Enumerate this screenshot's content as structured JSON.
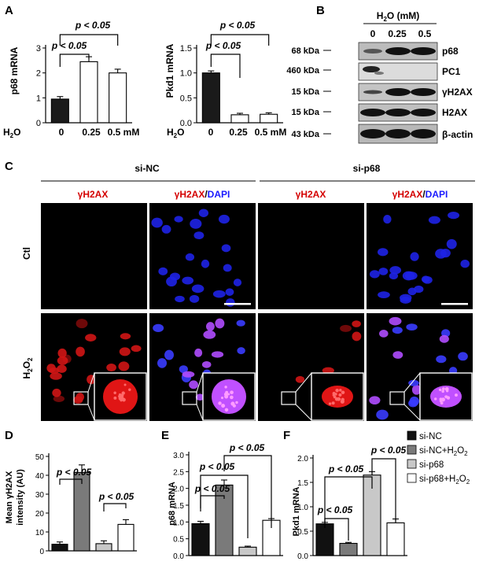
{
  "panels": {
    "A": "A",
    "B": "B",
    "C": "C",
    "D": "D",
    "E": "E",
    "F": "F"
  },
  "figA_left": {
    "ylabel": "p68 mRNA",
    "treatment_label": "H",
    "treatment_sub": "2",
    "treatment_label_end": "O",
    "unit": "mM",
    "categories": [
      "0",
      "0.25",
      "0.5 mM"
    ],
    "sig_top": "p < 0.05",
    "sig_low": "p < 0.05",
    "yticks": [
      "0",
      "1",
      "2",
      "3"
    ]
  },
  "figA_right": {
    "ylabel": "Pkd1 mRNA",
    "treatment_label": "H",
    "treatment_sub": "2",
    "treatment_label_end": "O",
    "categories": [
      "0",
      "0.25",
      "0.5 mM"
    ],
    "sig_top": "p < 0.05",
    "sig_low": "p < 0.05",
    "yticks": [
      "0.0",
      "0.5",
      "1.0",
      "1.5"
    ]
  },
  "figB": {
    "header": "H",
    "header_sub": "2",
    "header_end": "O",
    "header_unit": " (mM)",
    "lanes": [
      "0",
      "0.25",
      "0.5"
    ],
    "rows": [
      {
        "kda": "68 kDa",
        "protein": "p68"
      },
      {
        "kda": "460 kDa",
        "protein": "PC1"
      },
      {
        "kda": "15 kDa",
        "protein": "γH2AX"
      },
      {
        "kda": "15 kDa",
        "protein": "H2AX"
      },
      {
        "kda": "43 kDa",
        "protein": "β-actin"
      }
    ]
  },
  "figC": {
    "group1": "si-NC",
    "group2": "si-p68",
    "col_red": "γH2AX",
    "col_merge_red": "γH2AX",
    "col_merge_sep": "/",
    "col_merge_blue": "DAPI",
    "row1": "Ctl",
    "row2_main": "H",
    "row2_sub": "2",
    "row2_end": "O",
    "row2_sub2": "2"
  },
  "chart_data": [
    {
      "type": "bar",
      "panel": "A-left",
      "title": "",
      "ylabel": "p68 mRNA",
      "categories": [
        "0",
        "0.25",
        "0.5"
      ],
      "values": [
        0.95,
        2.45,
        2.0
      ],
      "errors": [
        0.1,
        0.2,
        0.15
      ],
      "ylim": [
        0,
        3
      ],
      "fills": [
        "#1a1a1a",
        "#ffffff",
        "#ffffff"
      ]
    },
    {
      "type": "bar",
      "panel": "A-right",
      "ylabel": "Pkd1 mRNA",
      "categories": [
        "0",
        "0.25",
        "0.5"
      ],
      "values": [
        1.0,
        0.16,
        0.17
      ],
      "errors": [
        0.04,
        0.03,
        0.03
      ],
      "ylim": [
        0,
        1.5
      ],
      "fills": [
        "#1a1a1a",
        "#ffffff",
        "#ffffff"
      ]
    },
    {
      "type": "bar",
      "panel": "D",
      "ylabel": "Mean γH2AX intensity (AU)",
      "categories": [
        "si-NC",
        "si-NC+H2O2",
        "si-p68",
        "si-p68+H2O2"
      ],
      "values": [
        3.5,
        41.5,
        3.8,
        14.0
      ],
      "errors": [
        1.2,
        4.0,
        1.5,
        2.5
      ],
      "ylim": [
        0,
        50
      ],
      "yticks": [
        "0",
        "10",
        "20",
        "30",
        "40",
        "50"
      ],
      "fills": [
        "#111111",
        "#7a7a7a",
        "#c8c8c8",
        "#ffffff"
      ]
    },
    {
      "type": "bar",
      "panel": "E",
      "ylabel": "p68 mRNA",
      "categories": [
        "si-NC",
        "si-NC+H2O2",
        "si-p68",
        "si-p68+H2O2"
      ],
      "values": [
        0.95,
        2.1,
        0.25,
        1.05
      ],
      "errors": [
        0.07,
        0.15,
        0.03,
        0.05
      ],
      "ylim": [
        0,
        3.0
      ],
      "yticks": [
        "0.0",
        "0.5",
        "1.0",
        "1.5",
        "2.0",
        "2.5",
        "3.0"
      ],
      "fills": [
        "#111111",
        "#7a7a7a",
        "#c8c8c8",
        "#ffffff"
      ]
    },
    {
      "type": "bar",
      "panel": "F",
      "ylabel": "Pkd1 mRNA",
      "categories": [
        "si-NC",
        "si-NC+H2O2",
        "si-p68",
        "si-p68+H2O2"
      ],
      "values": [
        0.65,
        0.25,
        1.65,
        0.67
      ],
      "errors": [
        0.03,
        0.02,
        0.07,
        0.08
      ],
      "ylim": [
        0,
        2.0
      ],
      "yticks": [
        "0.0",
        "0.5",
        "1.0",
        "1.5",
        "2.0"
      ],
      "fills": [
        "#111111",
        "#7a7a7a",
        "#c8c8c8",
        "#ffffff"
      ]
    }
  ],
  "sig": {
    "D_a": "p < 0.05",
    "D_b": "p < 0.05",
    "E_a": "p < 0.05",
    "E_b": "p < 0.05",
    "E_c": "p < 0.05",
    "F_a": "p < 0.05",
    "F_b": "p < 0.05",
    "F_c": "p < 0.05"
  },
  "legend": {
    "items": [
      {
        "label": "si-NC",
        "color": "#111111"
      },
      {
        "label": "si-NC+H",
        "sub": "2",
        "end": "O",
        "sub2": "2",
        "color": "#7a7a7a"
      },
      {
        "label": "si-p68",
        "color": "#c8c8c8"
      },
      {
        "label": "si-p68+H",
        "sub": "2",
        "end": "O",
        "sub2": "2",
        "color": "#ffffff"
      }
    ]
  }
}
